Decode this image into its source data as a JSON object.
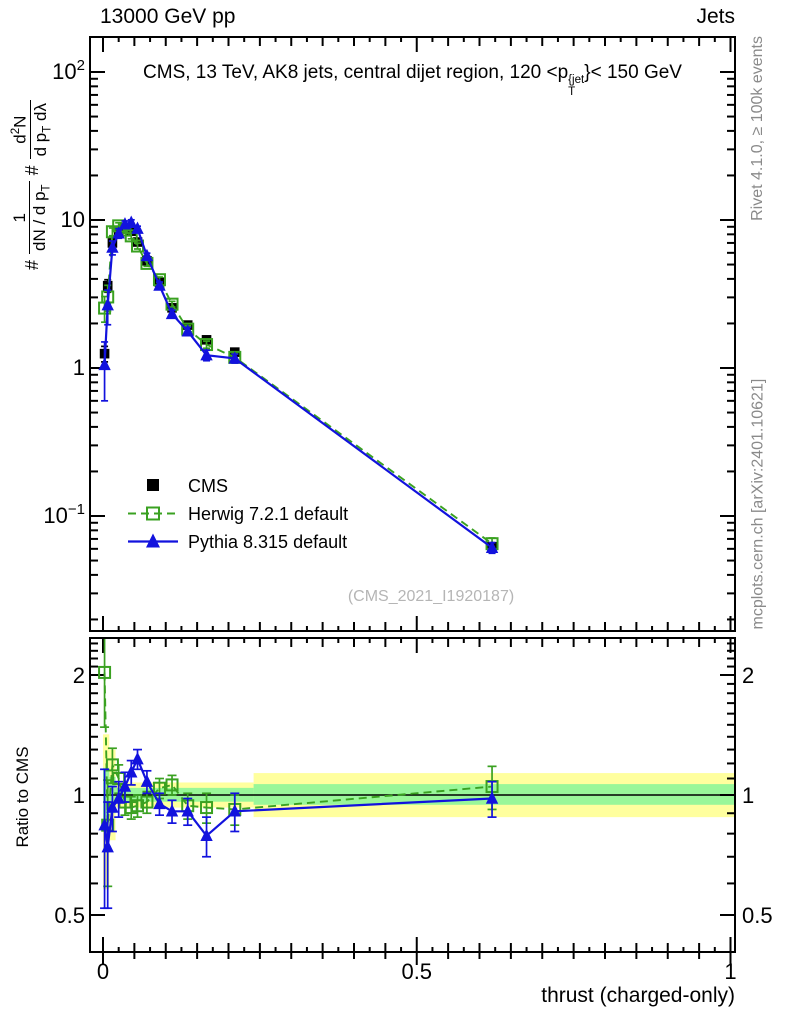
{
  "header": {
    "left": "13000 GeV pp",
    "right": "Jets"
  },
  "panel_title": {
    "pre": "CMS, 13 TeV, AK8 jets, central dijet region, 120 <p",
    "sup": "{jet",
    "sub": "T",
    "post": "}< 150 GeV"
  },
  "y_axis_label": {
    "hash1": "#",
    "num1": "1",
    "den1_pre": "dN / d p",
    "den1_sub": "T",
    "hash2": "#",
    "num2_pre": "d",
    "num2_sup": "2",
    "num2_post": "N",
    "den2_pre": "d p",
    "den2_sub": "T",
    "den2_post": " dλ"
  },
  "ratio_axis_label": "Ratio to CMS",
  "x_axis_label": "thrust (charged-only)",
  "watermark": "(CMS_2021_I1920187)",
  "side_notes": {
    "top": "Rivet 4.1.0, ≥ 100k events",
    "bottom": "mcplots.cern.ch [arXiv:2401.10621]"
  },
  "legend": [
    {
      "label": "CMS",
      "marker": "filled-square",
      "color": "#000000",
      "line": "none"
    },
    {
      "label": "Herwig 7.2.1 default",
      "marker": "open-square",
      "color": "#3aa121",
      "line": "dashed"
    },
    {
      "label": "Pythia 8.315 default",
      "marker": "filled-triangle",
      "color": "#1212dd",
      "line": "solid"
    }
  ],
  "colors": {
    "cms": "#000000",
    "herwig": "#3aa121",
    "pythia": "#1212dd",
    "band_yellow": "#ffff9e",
    "band_green": "#99f799",
    "frame": "#000000",
    "watermark": "#b5b5b5",
    "side_note": "#8a8a8a"
  },
  "chart_data": {
    "type": "line",
    "title": "CMS, 13 TeV, AK8 jets, central dijet region, 120 < p_T^{jet} < 150 GeV",
    "xlabel": "thrust (charged-only)",
    "ylabel": "# 1/(dN/dp_T) # d^2N/(dp_T dlambda)",
    "ratio_ylabel": "Ratio to CMS",
    "x_range": [
      0,
      1
    ],
    "main_y_scale": "log",
    "main_y_range": [
      0.017,
      170
    ],
    "ratio_y_scale": "log",
    "ratio_y_range": [
      0.4,
      2.47
    ],
    "grid": false,
    "legend_position": "inside-left-middle",
    "x_ticks": [
      {
        "value": 0,
        "label": "0"
      },
      {
        "value": 0.5,
        "label": "0.5"
      },
      {
        "value": 1,
        "label": "1"
      }
    ],
    "main_y_ticks": [
      {
        "value": 100,
        "base": "10",
        "exp": "2"
      },
      {
        "value": 10,
        "base": "10",
        "exp": ""
      },
      {
        "value": 1,
        "base": "1",
        "exp": ""
      },
      {
        "value": 0.1,
        "base": "10",
        "exp": "−1"
      }
    ],
    "ratio_y_ticks": [
      {
        "value": 2,
        "label": "2"
      },
      {
        "value": 1,
        "label": "1"
      },
      {
        "value": 0.5,
        "label": "0.5"
      }
    ],
    "x": [
      0.0025,
      0.0075,
      0.015,
      0.025,
      0.035,
      0.045,
      0.055,
      0.07,
      0.09,
      0.11,
      0.135,
      0.165,
      0.21,
      0.62
    ],
    "series": [
      {
        "name": "CMS",
        "role": "data",
        "marker": "filled-square",
        "color": "#000000",
        "draw_line": false,
        "y": [
          1.25,
          3.6,
          7.0,
          8.3,
          8.9,
          8.4,
          7.1,
          5.3,
          3.8,
          2.55,
          1.95,
          1.55,
          1.28,
          0.062
        ],
        "yerr": [
          0.15,
          0.35,
          0.45,
          0.45,
          0.45,
          0.4,
          0.35,
          0.27,
          0.2,
          0.13,
          0.1,
          0.08,
          0.07,
          0.004
        ]
      },
      {
        "name": "Herwig 7.2.1 default",
        "role": "mc",
        "marker": "open-square",
        "color": "#3aa121",
        "draw_line": true,
        "line_style": "dashed",
        "y": [
          2.54,
          3.02,
          8.33,
          9.13,
          8.54,
          7.81,
          6.67,
          5.09,
          3.95,
          2.7,
          1.83,
          1.44,
          1.18,
          0.065
        ],
        "yerr": [
          0.5,
          0.6,
          0.5,
          0.45,
          0.4,
          0.35,
          0.3,
          0.22,
          0.17,
          0.12,
          0.1,
          0.08,
          0.07,
          0.006
        ],
        "ratio": [
          2.03,
          0.84,
          1.19,
          1.1,
          0.96,
          0.93,
          0.94,
          0.96,
          1.04,
          1.06,
          0.94,
          0.93,
          0.92,
          1.05
        ],
        "ratio_err": [
          0.55,
          0.25,
          0.12,
          0.09,
          0.07,
          0.06,
          0.06,
          0.06,
          0.06,
          0.06,
          0.07,
          0.08,
          0.08,
          0.13
        ]
      },
      {
        "name": "Pythia 8.315 default",
        "role": "mc",
        "marker": "filled-triangle",
        "color": "#1212dd",
        "draw_line": true,
        "line_style": "solid",
        "y": [
          1.05,
          2.66,
          6.51,
          8.13,
          9.35,
          9.58,
          8.73,
          5.72,
          3.61,
          2.32,
          1.77,
          1.22,
          1.16,
          0.061
        ],
        "yerr": [
          0.45,
          0.7,
          0.7,
          0.6,
          0.5,
          0.45,
          0.35,
          0.25,
          0.2,
          0.14,
          0.11,
          0.1,
          0.08,
          0.005
        ],
        "ratio": [
          0.84,
          0.74,
          0.93,
          0.98,
          1.05,
          1.14,
          1.23,
          1.08,
          0.95,
          0.91,
          0.91,
          0.79,
          0.91,
          0.98
        ],
        "ratio_err": [
          0.32,
          0.22,
          0.12,
          0.1,
          0.09,
          0.08,
          0.07,
          0.07,
          0.06,
          0.06,
          0.07,
          0.09,
          0.1,
          0.1
        ]
      }
    ],
    "ratio_bands": {
      "yellow": [
        {
          "x0": 0.0,
          "x1": 0.01,
          "lo": 0.58,
          "hi": 1.42
        },
        {
          "x0": 0.01,
          "x1": 0.02,
          "lo": 0.77,
          "hi": 1.3
        },
        {
          "x0": 0.02,
          "x1": 0.24,
          "lo": 0.93,
          "hi": 1.075
        },
        {
          "x0": 0.24,
          "x1": 1.01,
          "lo": 0.88,
          "hi": 1.135
        }
      ],
      "green": [
        {
          "x0": 0.0,
          "x1": 0.01,
          "lo": 0.85,
          "hi": 1.17
        },
        {
          "x0": 0.01,
          "x1": 0.02,
          "lo": 0.9,
          "hi": 1.11
        },
        {
          "x0": 0.02,
          "x1": 0.24,
          "lo": 0.962,
          "hi": 1.042
        },
        {
          "x0": 0.24,
          "x1": 1.01,
          "lo": 0.945,
          "hi": 1.065
        }
      ]
    }
  }
}
